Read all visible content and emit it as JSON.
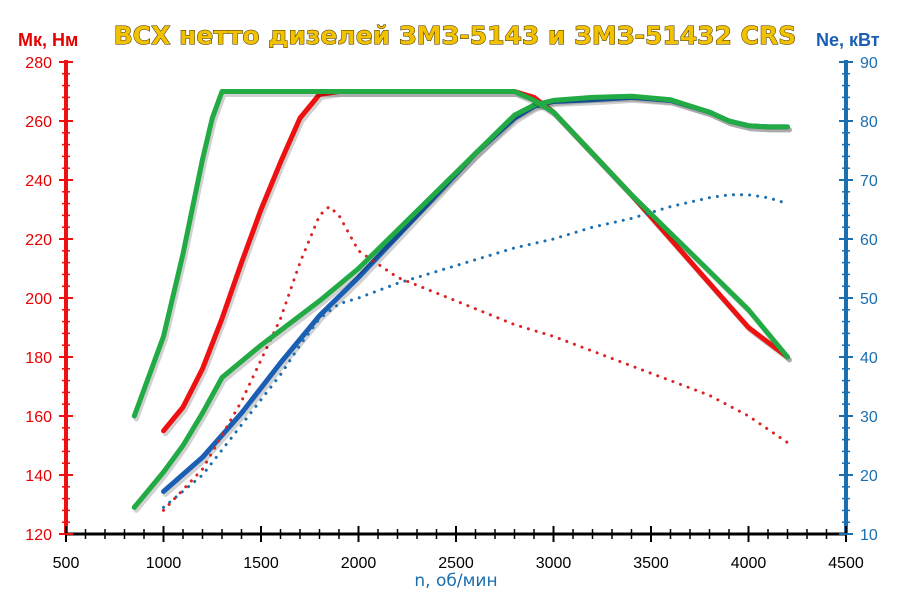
{
  "chart_data": {
    "type": "line",
    "title": "ВСХ нетто дизелей ЗМЗ-5143 и ЗМЗ-51432 CRS",
    "xlabel": "n, об/мин",
    "ylabel_left": "Мк, Нм",
    "ylabel_right": "Ne, кВт",
    "xlim": [
      500,
      4500
    ],
    "ylim_left": [
      120,
      280
    ],
    "ylim_right": [
      10,
      90
    ],
    "x_ticks": [
      "500",
      "1000",
      "1500",
      "2000",
      "2500",
      "3000",
      "3500",
      "4000",
      "4500"
    ],
    "y_left_ticks": [
      "120",
      "140",
      "160",
      "180",
      "200",
      "220",
      "240",
      "260",
      "280"
    ],
    "y_right_ticks": [
      "10",
      "20",
      "30",
      "40",
      "50",
      "60",
      "70",
      "80",
      "90"
    ],
    "grid": false,
    "series": [
      {
        "axis": "left",
        "style": "solid",
        "color": "#ee1111",
        "x": [
          1000,
          1100,
          1200,
          1300,
          1400,
          1500,
          1600,
          1700,
          1800,
          1900,
          2000,
          2200,
          2400,
          2600,
          2800,
          2900,
          3000,
          3200,
          3400,
          3600,
          3800,
          4000,
          4200
        ],
        "y": [
          155,
          163,
          176,
          193,
          212,
          230,
          246,
          261,
          269,
          270,
          270,
          270,
          270,
          270,
          270,
          268,
          263,
          249,
          235,
          220,
          205,
          190,
          180
        ]
      },
      {
        "axis": "left",
        "style": "solid",
        "color": "#22aa44",
        "x": [
          850,
          950,
          1000,
          1100,
          1200,
          1250,
          1300,
          1500,
          2000,
          2500,
          2800,
          2900,
          3000,
          3200,
          3400,
          3600,
          3800,
          4000,
          4200
        ],
        "y": [
          160,
          178,
          187,
          215,
          247,
          261,
          270,
          270,
          270,
          270,
          270,
          267,
          263,
          249,
          235,
          222,
          209,
          196,
          180
        ]
      },
      {
        "axis": "left",
        "style": "dotted",
        "color": "#dd2222",
        "x": [
          1000,
          1200,
          1400,
          1600,
          1700,
          1800,
          1850,
          1900,
          2000,
          2200,
          2500,
          2800,
          3000,
          3200,
          3400,
          3600,
          3800,
          4000,
          4200
        ],
        "y": [
          128,
          142,
          165,
          193,
          212,
          228,
          231,
          228,
          216,
          207,
          199,
          191,
          187,
          182,
          177,
          172,
          167,
          160,
          151
        ]
      },
      {
        "axis": "right",
        "style": "solid",
        "color": "#1a5fb4",
        "x": [
          1000,
          1200,
          1400,
          1600,
          1800,
          2000,
          2200,
          2400,
          2600,
          2800,
          2900,
          3000,
          3200,
          3400,
          3600,
          3800,
          3900,
          4000,
          4100,
          4200
        ],
        "y": [
          17.2,
          23,
          30.5,
          39,
          47,
          53.5,
          60.5,
          67.5,
          74.5,
          80.5,
          82.5,
          83.3,
          83.6,
          84,
          83.5,
          81.5,
          80,
          79.2,
          79,
          79
        ]
      },
      {
        "axis": "right",
        "style": "solid",
        "color": "#22aa44",
        "x": [
          850,
          1000,
          1100,
          1200,
          1300,
          1500,
          1800,
          2000,
          2200,
          2400,
          2600,
          2800,
          2900,
          3000,
          3200,
          3400,
          3600,
          3800,
          3900,
          4000,
          4100,
          4200
        ],
        "y": [
          14.5,
          20.5,
          25,
          30.5,
          36.5,
          42,
          49.5,
          55,
          61.5,
          68,
          74.5,
          81,
          82.7,
          83.5,
          84,
          84.2,
          83.6,
          81.5,
          80,
          79.2,
          79,
          79
        ]
      },
      {
        "axis": "right",
        "style": "dotted",
        "color": "#1a6fb0",
        "x": [
          1000,
          1200,
          1400,
          1600,
          1700,
          1800,
          1900,
          2000,
          2200,
          2500,
          2800,
          3000,
          3200,
          3400,
          3600,
          3800,
          3900,
          4000,
          4100,
          4200
        ],
        "y": [
          14.5,
          20,
          28.5,
          37,
          42,
          46.5,
          49,
          50,
          52.5,
          55.5,
          58.5,
          60,
          62,
          63.5,
          65.5,
          67,
          67.5,
          67.5,
          67,
          66
        ]
      }
    ]
  }
}
